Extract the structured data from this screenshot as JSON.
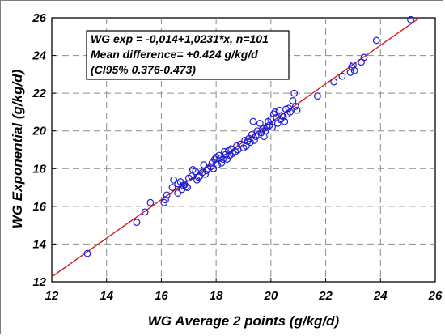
{
  "chart_data": {
    "type": "scatter",
    "xlabel": "WG Average 2 points (g/kg/d)",
    "ylabel": "WG Exponential (g/kg/d)",
    "xlim": [
      12,
      26
    ],
    "ylim": [
      12,
      26
    ],
    "xticks": [
      "12",
      "14",
      "16",
      "18",
      "20",
      "22",
      "24",
      "26"
    ],
    "yticks": [
      "12",
      "14",
      "16",
      "18",
      "20",
      "22",
      "24",
      "26"
    ],
    "grid": true,
    "annotations": [
      "WG exp = -0,014+1,0231*x, n=101",
      "Mean difference= +0.424 g/kg/d",
      "(CI95% 0.376-0.473)"
    ],
    "fit_line": {
      "intercept": -0.014,
      "slope": 1.0231
    },
    "colors": {
      "points": "#1c1cd6",
      "fit_line": "#d42020",
      "grid": "#8c8c8c"
    },
    "points": [
      [
        13.3,
        13.5
      ],
      [
        15.1,
        15.15
      ],
      [
        15.4,
        15.7
      ],
      [
        15.6,
        16.2
      ],
      [
        16.1,
        16.2
      ],
      [
        16.15,
        16.35
      ],
      [
        16.2,
        16.6
      ],
      [
        16.4,
        17.0
      ],
      [
        16.45,
        17.4
      ],
      [
        16.6,
        16.7
      ],
      [
        16.6,
        17.2
      ],
      [
        16.7,
        17.3
      ],
      [
        16.75,
        16.9
      ],
      [
        16.8,
        17.1
      ],
      [
        16.9,
        17.05
      ],
      [
        16.95,
        17.0
      ],
      [
        17.0,
        17.5
      ],
      [
        17.1,
        17.6
      ],
      [
        17.15,
        17.95
      ],
      [
        17.3,
        17.4
      ],
      [
        17.4,
        17.6
      ],
      [
        17.5,
        17.8
      ],
      [
        17.55,
        18.2
      ],
      [
        17.6,
        17.7
      ],
      [
        17.65,
        17.9
      ],
      [
        17.7,
        18.0
      ],
      [
        17.8,
        18.1
      ],
      [
        17.85,
        18.3
      ],
      [
        17.9,
        18.0
      ],
      [
        17.95,
        18.5
      ],
      [
        18.0,
        18.6
      ],
      [
        18.05,
        18.2
      ],
      [
        18.1,
        18.7
      ],
      [
        18.2,
        18.3
      ],
      [
        18.25,
        18.5
      ],
      [
        18.3,
        18.9
      ],
      [
        18.4,
        18.5
      ],
      [
        18.5,
        18.7
      ],
      [
        18.6,
        18.8
      ],
      [
        18.7,
        18.9
      ],
      [
        18.75,
        19.2
      ],
      [
        18.8,
        19.0
      ],
      [
        18.9,
        19.3
      ],
      [
        19.0,
        19.1
      ],
      [
        19.05,
        19.5
      ],
      [
        19.1,
        19.2
      ],
      [
        19.2,
        19.6
      ],
      [
        19.25,
        19.4
      ],
      [
        19.3,
        19.8
      ],
      [
        19.4,
        19.5
      ],
      [
        19.45,
        19.7
      ],
      [
        19.5,
        20.0
      ],
      [
        19.55,
        19.8
      ],
      [
        19.6,
        20.4
      ],
      [
        19.65,
        19.9
      ],
      [
        19.7,
        20.1
      ],
      [
        19.75,
        19.7
      ],
      [
        19.8,
        20.0
      ],
      [
        19.85,
        20.2
      ],
      [
        19.9,
        20.5
      ],
      [
        19.95,
        20.3
      ],
      [
        20.0,
        20.6
      ],
      [
        20.05,
        20.2
      ],
      [
        20.1,
        20.9
      ],
      [
        20.15,
        21.0
      ],
      [
        20.2,
        20.7
      ],
      [
        20.25,
        20.4
      ],
      [
        20.3,
        21.1
      ],
      [
        20.35,
        20.6
      ],
      [
        20.4,
        20.8
      ],
      [
        20.5,
        20.5
      ],
      [
        20.6,
        20.9
      ],
      [
        20.65,
        21.2
      ],
      [
        20.7,
        21.0
      ],
      [
        20.8,
        21.6
      ],
      [
        20.85,
        22.0
      ],
      [
        20.9,
        21.3
      ],
      [
        20.95,
        21.1
      ],
      [
        21.7,
        21.85
      ],
      [
        22.3,
        22.6
      ],
      [
        22.6,
        22.9
      ],
      [
        22.9,
        23.1
      ],
      [
        22.95,
        23.4
      ],
      [
        23.0,
        23.5
      ],
      [
        23.05,
        23.2
      ],
      [
        23.3,
        23.65
      ],
      [
        23.4,
        23.9
      ],
      [
        23.85,
        24.8
      ],
      [
        25.1,
        25.9
      ],
      [
        19.35,
        20.5
      ],
      [
        18.45,
        18.95
      ],
      [
        17.35,
        17.55
      ],
      [
        18.15,
        18.55
      ],
      [
        19.15,
        19.45
      ],
      [
        20.45,
        20.75
      ],
      [
        17.25,
        17.85
      ],
      [
        18.55,
        19.05
      ],
      [
        19.75,
        20.15
      ],
      [
        16.85,
        17.15
      ],
      [
        18.35,
        18.75
      ],
      [
        20.55,
        21.15
      ]
    ]
  }
}
